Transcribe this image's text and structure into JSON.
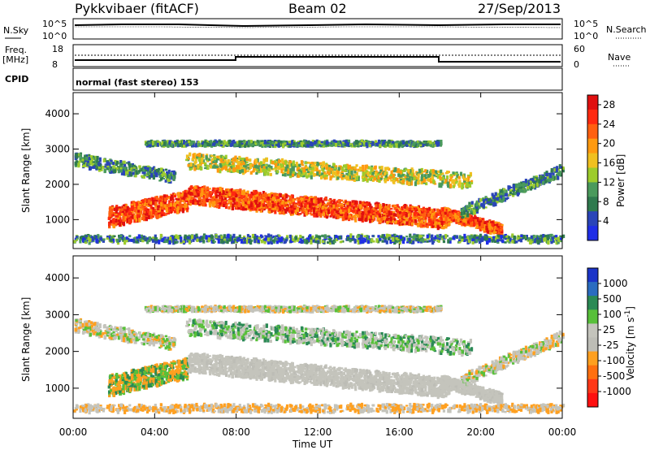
{
  "header": {
    "station": "Pykkvibaer (fitACF)",
    "beam": "Beam 02",
    "date": "27/Sep/2013"
  },
  "sky_panel": {
    "left_label": "N.Sky",
    "left_ticks": [
      "10^5",
      "10^0"
    ],
    "right_label": "N.Search",
    "right_ticks": [
      "10^5",
      "10^0"
    ]
  },
  "freq_panel": {
    "left_label_1": "Freq.",
    "left_label_2": "[MHz]",
    "left_ticks": [
      "18",
      "8"
    ],
    "right_label": "Nave",
    "right_ticks": [
      "60",
      "0"
    ]
  },
  "cpid_panel": {
    "label": "CPID",
    "text": "normal (fast stereo) 153"
  },
  "colors": {
    "power_scale": [
      "#1f2ee6",
      "#2a45b8",
      "#2f7a4e",
      "#4a9a5c",
      "#9dcc2c",
      "#f0c020",
      "#ff9a10",
      "#ff6010",
      "#ff2a10",
      "#e01010"
    ],
    "velocity_scale": [
      "#1b34c8",
      "#2a6cc0",
      "#2a8a55",
      "#58c03a",
      "#c4c4bc",
      "#bdbdb6",
      "#ffa020",
      "#ff7010",
      "#ff3818",
      "#ff1010"
    ]
  },
  "chart_data": [
    {
      "type": "heatmap",
      "title": "",
      "xlabel": "Time UT",
      "ylabel": "Slant Range [km]",
      "x_ticks": [
        "00:00",
        "04:00",
        "08:00",
        "12:00",
        "16:00",
        "20:00",
        "00:00"
      ],
      "xlim_hours": [
        0,
        24
      ],
      "y_ticks": [
        "1000",
        "2000",
        "3000",
        "4000"
      ],
      "ylim": [
        180,
        4600
      ],
      "colorbar_label": "Power [dB]",
      "colorbar_ticks": [
        "4",
        "8",
        "12",
        "16",
        "20",
        "24",
        "28"
      ],
      "colorbar_range": [
        0,
        30
      ]
    },
    {
      "type": "heatmap",
      "title": "",
      "xlabel": "Time UT",
      "ylabel": "Slant Range [km]",
      "x_ticks": [
        "00:00",
        "04:00",
        "08:00",
        "12:00",
        "16:00",
        "20:00",
        "00:00"
      ],
      "xlim_hours": [
        0,
        24
      ],
      "y_ticks": [
        "1000",
        "2000",
        "3000",
        "4000"
      ],
      "ylim": [
        180,
        4600
      ],
      "colorbar_label": "Velocity [m s",
      "colorbar_label_superscript": "-1",
      "colorbar_label_close": "]",
      "colorbar_ticks": [
        "1000",
        "500",
        "100",
        "25",
        "-25",
        "-100",
        "-500",
        "-1000"
      ]
    }
  ]
}
